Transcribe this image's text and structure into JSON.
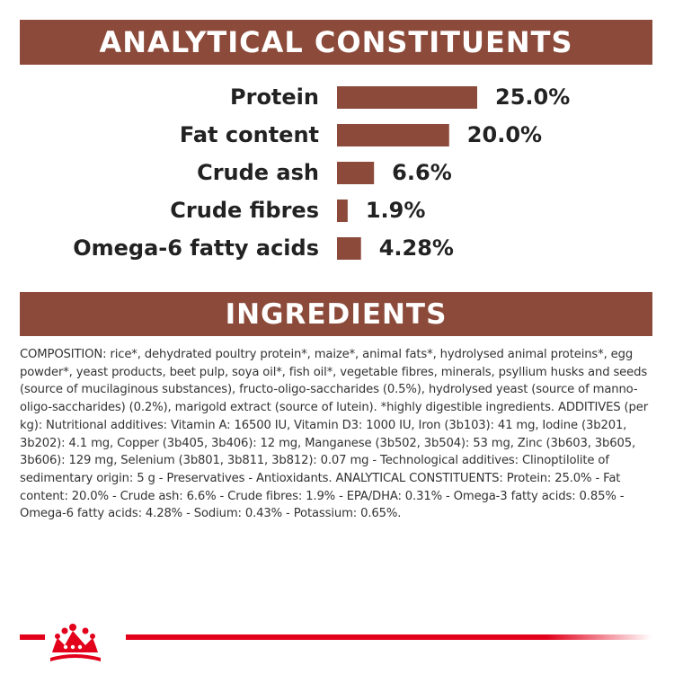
{
  "colors": {
    "banner": "#8c4a3a",
    "bar": "#8c4a3a",
    "brand_red": "#e2001a"
  },
  "sections": {
    "analytical_title": "ANALYTICAL CONSTITUENTS",
    "ingredients_title": "INGREDIENTS"
  },
  "chart_data": {
    "type": "bar",
    "orientation": "horizontal",
    "categories": [
      "Protein",
      "Fat content",
      "Crude ash",
      "Crude fibres",
      "Omega-6 fatty acids"
    ],
    "values": [
      25.0,
      20.0,
      6.6,
      1.9,
      4.28
    ],
    "value_labels": [
      "25.0%",
      "20.0%",
      "6.6%",
      "1.9%",
      "4.28%"
    ],
    "xlim": [
      0,
      25
    ],
    "grid": false
  },
  "ingredients": {
    "composition": "COMPOSITION: rice*, dehydrated poultry protein*, maize*, animal fats*, hydrolysed animal proteins*, egg powder*, yeast products, beet pulp, soya oil*, fish oil*, vegetable fibres, minerals, psyllium husks and seeds (source of mucilaginous substances), fructo-oligo-saccharides (0.5%), hydrolysed yeast (source of manno-oligo-saccharides) (0.2%), marigold extract (source of lutein). *highly digestible ingredients. ADDITIVES (per kg): Nutritional additives: Vitamin A: 16500 IU, Vitamin D3: 1000 IU, Iron (3b103): 41 mg, Iodine (3b201, 3b202): 4.1 mg, Copper (3b405, 3b406): 12 mg, Manganese (3b502, 3b504): 53 mg, Zinc (3b603, 3b605, 3b606): 129 mg, Selenium (3b801, 3b811, 3b812): 0.07 mg - Technological additives: Clinoptilolite of sedimentary origin: 5 g - Preservatives - Antioxidants. ANALYTICAL CONSTITUENTS: Protein: 25.0% - Fat content: 20.0% - Crude ash: 6.6% - Crude fibres: 1.9% - EPA/DHA: 0.31% - Omega-3 fatty acids: 0.85% - Omega-6 fatty acids: 4.28% - Sodium: 0.43% - Potassium: 0.65%."
  },
  "footer": {
    "logo_icon": "crown-logo-icon"
  }
}
